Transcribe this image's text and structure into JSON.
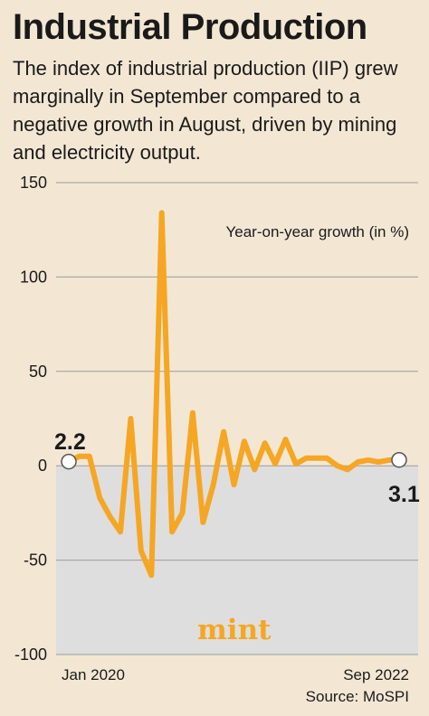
{
  "header": {
    "title": "Industrial Production",
    "subtitle": "The index of industrial production (IIP) grew marginally in September compared to a negative growth in August, driven by mining and electricity output."
  },
  "colors": {
    "line": "#f5a623",
    "negative_area": "#dedede",
    "background": "#f3e7d4",
    "gridline": "#9b9b9b"
  },
  "logo": "mint",
  "source": "Source: MoSPI",
  "chart_data": {
    "type": "line",
    "title": "",
    "ylabel": "Year-on-year growth (in %)",
    "xlabel": "",
    "ylim": [
      -100,
      150
    ],
    "yticks": [
      150,
      100,
      50,
      0,
      -50,
      -100
    ],
    "ytick_labels": [
      "150",
      "100",
      "50",
      "0",
      "-50",
      "-100"
    ],
    "x_tick_labels": [
      "Jan 2020",
      "Sep 2022"
    ],
    "grid": true,
    "start_label": "2.2",
    "end_label": "3.1",
    "series": [
      {
        "values": [
          2.2,
          5,
          5,
          -17,
          -27,
          -35,
          25,
          -45,
          -58,
          134,
          -35,
          -25,
          28,
          -30,
          -10,
          18,
          -10,
          13,
          -2,
          12,
          1,
          14,
          1,
          4,
          4,
          4,
          0,
          -2,
          2,
          3,
          2,
          3,
          3.1
        ]
      }
    ]
  }
}
